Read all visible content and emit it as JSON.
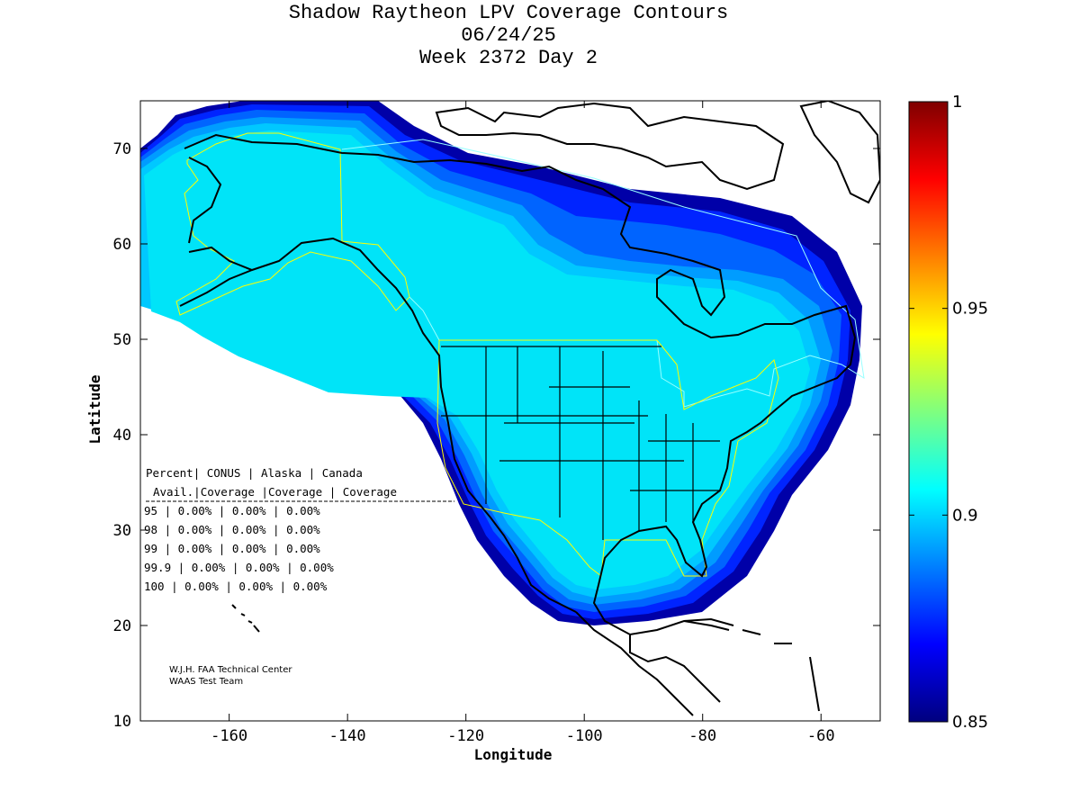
{
  "title": {
    "line1": "Shadow Raytheon LPV Coverage Contours",
    "line2": "06/24/25",
    "line3": "Week 2372 Day 2"
  },
  "axes": {
    "xlabel": "Longitude",
    "ylabel": "Latitude",
    "x_range": [
      -175,
      -50
    ],
    "y_range": [
      10,
      75
    ],
    "x_ticks": [
      -160,
      -140,
      -120,
      -100,
      -80,
      -60
    ],
    "y_ticks": [
      10,
      20,
      30,
      40,
      50,
      60,
      70
    ]
  },
  "colorbar": {
    "range": [
      0.85,
      1
    ],
    "ticks": [
      "0.85",
      "0.9",
      "0.95",
      "1"
    ],
    "colors": [
      "#00007f",
      "#0000ff",
      "#007fff",
      "#00ffff",
      "#7fff7f",
      "#ffff00",
      "#ff7f00",
      "#ff0000",
      "#7f0000"
    ]
  },
  "coverage_table": {
    "header1": [
      "Percent",
      "CONUS",
      "Alaska",
      "Canada"
    ],
    "header2": [
      "Avail.",
      "Coverage",
      "Coverage",
      "Coverage"
    ],
    "rows": [
      {
        "pct": "95",
        "conus": "0.00%",
        "alaska": "0.00%",
        "canada": "0.00%"
      },
      {
        "pct": "98",
        "conus": "0.00%",
        "alaska": "0.00%",
        "canada": "0.00%"
      },
      {
        "pct": "99",
        "conus": "0.00%",
        "alaska": "0.00%",
        "canada": "0.00%"
      },
      {
        "pct": "99.9",
        "conus": "0.00%",
        "alaska": "0.00%",
        "canada": "0.00%"
      },
      {
        "pct": "100",
        "conus": "0.00%",
        "alaska": "0.00%",
        "canada": "0.00%"
      }
    ]
  },
  "credits": {
    "line1": "W.J.H. FAA Technical Center",
    "line2": "WAAS Test Team"
  },
  "map_colors": {
    "outer": "#0000a8",
    "band2": "#0024ff",
    "band3": "#0064ff",
    "band4": "#009cff",
    "band5": "#00c8ff",
    "core": "#00e4f8",
    "boundary": "#ffff00",
    "coast": "#000000"
  }
}
